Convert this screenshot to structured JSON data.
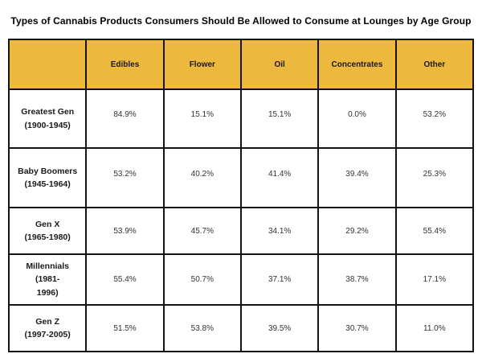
{
  "title": "Types of Cannabis Products Consumers Should Be Allowed to Consume at Lounges by Age Group",
  "colors": {
    "header_bg": "#ECB83E",
    "border": "#141414",
    "text": "#000000"
  },
  "table": {
    "columns": [
      "",
      "Edibles",
      "Flower",
      "Oil",
      "Concentrates",
      "Other"
    ],
    "rows": [
      {
        "label_line1": "Greatest Gen",
        "label_line2": "(1900-1945)",
        "values": [
          "84.9%",
          "15.1%",
          "15.1%",
          "0.0%",
          "53.2%"
        ]
      },
      {
        "label_line1": "Baby Boomers",
        "label_line2": "(1945-1964)",
        "values": [
          "53.2%",
          "40.2%",
          "41.4%",
          "39.4%",
          "25.3%"
        ]
      },
      {
        "label_line1": "Gen X",
        "label_line2": "(1965-1980)",
        "values": [
          "53.9%",
          "45.7%",
          "34.1%",
          "29.2%",
          "55.4%"
        ]
      },
      {
        "label_line1": "Millennials (1981-",
        "label_line2": "1996)",
        "values": [
          "55.4%",
          "50.7%",
          "37.1%",
          "38.7%",
          "17.1%"
        ]
      },
      {
        "label_line1": "Gen Z",
        "label_line2": "(1997-2005)",
        "values": [
          "51.5%",
          "53.8%",
          "39.5%",
          "30.7%",
          "11.0%"
        ]
      }
    ]
  },
  "chart_data": {
    "type": "table",
    "title": "Types of Cannabis Products Consumers Should Be Allowed to Consume at Lounges by Age Group",
    "columns": [
      "Edibles",
      "Flower",
      "Oil",
      "Concentrates",
      "Other"
    ],
    "row_labels": [
      "Greatest Gen (1900-1945)",
      "Baby Boomers (1945-1964)",
      "Gen X (1965-1980)",
      "Millennials (1981-1996)",
      "Gen Z (1997-2005)"
    ],
    "values_percent": [
      [
        84.9,
        15.1,
        15.1,
        0.0,
        53.2
      ],
      [
        53.2,
        40.2,
        41.4,
        39.4,
        25.3
      ],
      [
        53.9,
        45.7,
        34.1,
        29.2,
        55.4
      ],
      [
        55.4,
        50.7,
        37.1,
        38.7,
        17.1
      ],
      [
        51.5,
        53.8,
        39.5,
        30.7,
        11.0
      ]
    ]
  }
}
